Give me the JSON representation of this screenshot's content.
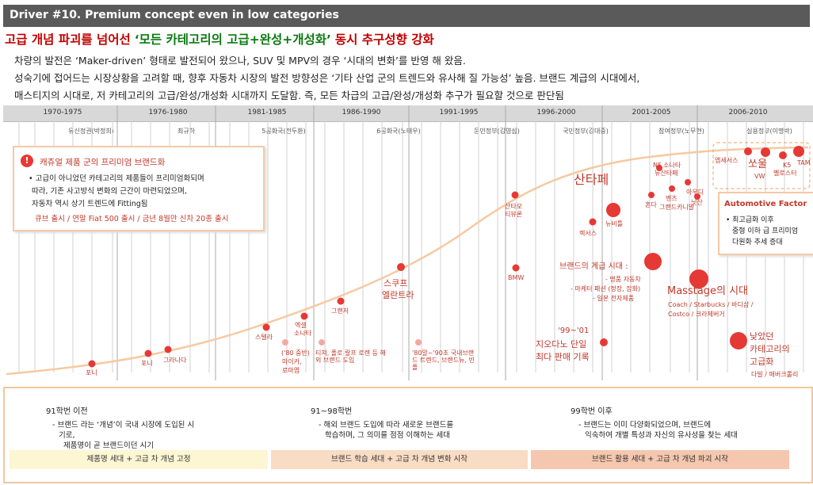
{
  "title": "Driver #10. Premium concept even in low categories",
  "headline": {
    "lead": "고급 개념 파괴를 넘어선",
    "quote": "‘모든 카테고리의 고급+완성+개성화’",
    "tail": "동시 추구성향 강화"
  },
  "description": [
    "차량의 발전은 ‘Maker-driven’ 형태로 발전되어 왔으나, SUV 및 MPV의 경우 ‘시대의 변화’를 반영 해 왔음.",
    "성숙기에 접어드는 시장상황을 고려할 때, 향후 자동차 시장의 발전 방향성은 ‘기타 산업 군의 트렌드와 유사해 질 가능성’ 높음. 브랜드 계급의 시대에서,",
    "매스티지의 시대로, 저 카테고리의 고급/완성/개성화 시대까지 도달함. 즉, 모든 차급의 고급/완성/개성화 추구가 필요할 것으로 판단됨"
  ],
  "periods": [
    "1970-1975",
    "1976-1980",
    "1981-1985",
    "1986-1990",
    "1991-1995",
    "1996-2000",
    "2001-2005",
    "2006-2010"
  ],
  "governments": [
    "유신정권(박정희)",
    "최규하",
    "5공화국(전두환)",
    "6공화국(노태우)",
    "문민정부(김영삼)",
    "국민정부(김대중)",
    "참여정부(노무현)",
    "실용정부(이명박)"
  ],
  "car_labels": {
    "pony": "포니",
    "stellar": "스텔라",
    "excel": "엑셀",
    "scoupe": "스쿠프",
    "elantra": "엘란트라",
    "sonata": "소나타",
    "grandeur": "그랜저",
    "santamo": "산타모",
    "tiburon": "티뷰론",
    "bmw": "BMW",
    "santafe": "산타페",
    "lexus": "렉서스",
    "newbeetle": "뉴비틀",
    "nf_sonata": "NF 소나타",
    "new_santafe": "뉴산타페",
    "honda": "혼다",
    "benz": "벤츠",
    "grandcarnival": "그랜드카니발",
    "audi": "아우디",
    "nissan": "닛산",
    "prestige": "앱세서스",
    "soul": "쏘울",
    "k5": "K5",
    "tam": "TAM",
    "vw": "VW",
    "premium": "벨로스터",
    "pony2": "포니",
    "cortina": "그라나다",
    "early80s": "('80 중반)",
    "early80s_2": "마이카,",
    "early80s_3": "로마엽"
  },
  "annotations": {
    "imports": "티쳐, 폴로 랄프 로렌 등 해외 브랜드 도입",
    "late80s": "'80말~'90초 국내브랜드 트렌드, 브랜드뉴, 빈폴",
    "brand_class_title": "브랜드의 계급 시대 :",
    "brand_class_items": [
      "- 명품 자동차",
      "- 마케터 패션 (정장, 잡화)",
      "- 일본 전자제품"
    ],
    "giordano": [
      "'99~'01",
      "지오다노 단일",
      "최다 판매 기록"
    ],
    "masstige": "Masstage의 시대",
    "masstige_items": [
      "Coach / Starbucks / 바디샵 /",
      "Costco / 크라제버거"
    ],
    "low_category": [
      "낮았던",
      "카테고리의",
      "고급화"
    ],
    "low_category_items": "다빌 / 매버크롤리"
  },
  "casual_box": {
    "title": "캐쥬얼 제품 군의 프리미엄 브랜드화",
    "lines": [
      "• 고급이 아니었던 카테고리의 제품들이 프리미엄화되며",
      "따라, 기존 사고방식 변화의 근간이 마련되었으며,",
      "자동차 역시 상기 트렌드에 Fitting됨"
    ],
    "highlight": "큐브 출시 / 연말 Fiat 500 출시 / 금년 8월만 신차 20종 출시"
  },
  "auto_box": {
    "title": "Automotive Factor",
    "lines": [
      "• 최고급화 이후",
      "중형 이하 급 프리미엄",
      "다원화 추세 증대"
    ]
  },
  "generations": [
    {
      "title": "91학번 이전",
      "lines": [
        "- 브랜드 라는 ‘개념’이 국내 시장에 도입된 시",
        "기로,",
        "제품명이 곧 브랜드이던 시기"
      ],
      "bar": "제품명 세대 + 고급 차 개념 고정",
      "bar_color": "#fdf6d3"
    },
    {
      "title": "91~98학번",
      "lines": [
        "- 해외 브랜드 도입에 따라 새로운 브랜드를",
        "학습하며, 그 의미를 점점 이해하는 세대"
      ],
      "bar": "브랜드 학습 세대 + 고급 차 개념 변화 시작",
      "bar_color": "#f8dcc4"
    },
    {
      "title": "99학번 이후",
      "lines": [
        "- 브랜드는 이미 다양화되었으며, 브랜드에",
        "익숙하여 개별 특성과 자신의 유사성을 찾는 세대"
      ],
      "bar": "브랜드 활용 세대 + 고급 차 개념 파괴 시작",
      "bar_color": "#f4c7ae"
    }
  ],
  "colors": {
    "accent_red": "#e53935",
    "curve": "#f6c9a0",
    "title_bg": "#5a5a5a"
  }
}
